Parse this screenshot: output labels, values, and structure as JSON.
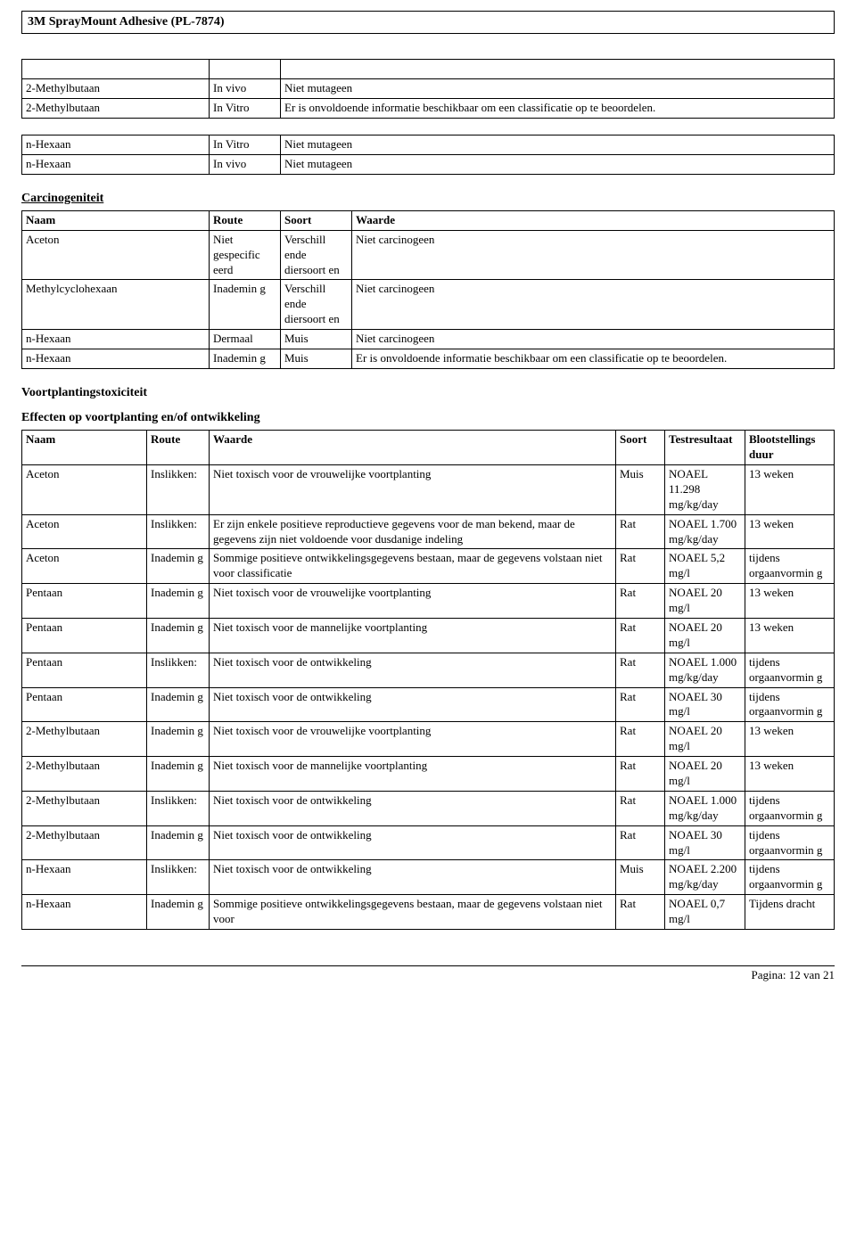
{
  "header": {
    "title": "3M SprayMount Adhesive (PL-7874)"
  },
  "table1": {
    "rows": [
      [
        "2-Methylbutaan",
        "In vivo",
        "Niet mutageen"
      ],
      [
        "2-Methylbutaan",
        "In Vitro",
        "Er is onvoldoende informatie beschikbaar om een classificatie op te beoordelen."
      ]
    ],
    "col_widths": [
      "210px",
      "80px",
      "auto"
    ]
  },
  "table2": {
    "rows": [
      [
        "n-Hexaan",
        "In Vitro",
        "Niet mutageen"
      ],
      [
        "n-Hexaan",
        "In vivo",
        "Niet mutageen"
      ]
    ],
    "col_widths": [
      "210px",
      "80px",
      "auto"
    ]
  },
  "carcino": {
    "title": "Carcinogeniteit",
    "headers": [
      "Naam",
      "Route",
      "Soort",
      "Waarde"
    ],
    "col_widths": [
      "210px",
      "80px",
      "80px",
      "auto"
    ],
    "rows": [
      [
        "Aceton",
        "Niet gespecific eerd",
        "Verschill ende diersoort en",
        "Niet carcinogeen"
      ],
      [
        "Methylcyclohexaan",
        "Inademin g",
        "Verschill ende diersoort en",
        "Niet carcinogeen"
      ],
      [
        "n-Hexaan",
        "Dermaal",
        "Muis",
        "Niet carcinogeen"
      ],
      [
        "n-Hexaan",
        "Inademin g",
        "Muis",
        "Er is onvoldoende informatie beschikbaar om een classificatie op te beoordelen."
      ]
    ]
  },
  "repro": {
    "title1": "Voortplantingstoxiciteit",
    "title2": "Effecten op voortplanting en/of ontwikkeling",
    "headers": [
      "Naam",
      "Route",
      "Waarde",
      "Soort",
      "Testresultaat",
      "Blootstellings duur"
    ],
    "col_widths": [
      "140px",
      "70px",
      "auto",
      "55px",
      "90px",
      "100px"
    ],
    "rows": [
      [
        "Aceton",
        "Inslikken:",
        "Niet toxisch voor de vrouwelijke voortplanting",
        "Muis",
        "NOAEL 11.298 mg/kg/day",
        "13 weken"
      ],
      [
        "Aceton",
        "Inslikken:",
        "Er zijn enkele positieve reproductieve gegevens voor de man bekend, maar de gegevens zijn niet voldoende voor dusdanige indeling",
        "Rat",
        "NOAEL 1.700 mg/kg/day",
        "13 weken"
      ],
      [
        "Aceton",
        "Inademin g",
        "Sommige positieve ontwikkelingsgegevens bestaan, maar de gegevens volstaan niet voor classificatie",
        "Rat",
        "NOAEL 5,2 mg/l",
        "tijdens orgaanvormin g"
      ],
      [
        "Pentaan",
        "Inademin g",
        "Niet toxisch voor de vrouwelijke voortplanting",
        "Rat",
        "NOAEL 20 mg/l",
        "13 weken"
      ],
      [
        "Pentaan",
        "Inademin g",
        "Niet toxisch voor de mannelijke voortplanting",
        "Rat",
        "NOAEL 20 mg/l",
        "13 weken"
      ],
      [
        "Pentaan",
        "Inslikken:",
        "Niet toxisch voor de ontwikkeling",
        "Rat",
        "NOAEL 1.000 mg/kg/day",
        "tijdens orgaanvormin g"
      ],
      [
        "Pentaan",
        "Inademin g",
        "Niet toxisch voor de ontwikkeling",
        "Rat",
        "NOAEL 30 mg/l",
        "tijdens orgaanvormin g"
      ],
      [
        "2-Methylbutaan",
        "Inademin g",
        "Niet toxisch voor de vrouwelijke voortplanting",
        "Rat",
        "NOAEL 20 mg/l",
        "13 weken"
      ],
      [
        "2-Methylbutaan",
        "Inademin g",
        "Niet toxisch voor de mannelijke voortplanting",
        "Rat",
        "NOAEL 20 mg/l",
        "13 weken"
      ],
      [
        "2-Methylbutaan",
        "Inslikken:",
        "Niet toxisch voor de ontwikkeling",
        "Rat",
        "NOAEL 1.000 mg/kg/day",
        "tijdens orgaanvormin g"
      ],
      [
        "2-Methylbutaan",
        "Inademin g",
        "Niet toxisch voor de ontwikkeling",
        "Rat",
        "NOAEL 30 mg/l",
        "tijdens orgaanvormin g"
      ],
      [
        "n-Hexaan",
        "Inslikken:",
        "Niet toxisch voor de ontwikkeling",
        "Muis",
        "NOAEL 2.200 mg/kg/day",
        "tijdens orgaanvormin g"
      ],
      [
        "n-Hexaan",
        "Inademin g",
        "Sommige positieve ontwikkelingsgegevens bestaan, maar de gegevens volstaan niet voor",
        "Rat",
        "NOAEL 0,7 mg/l",
        "Tijdens dracht"
      ]
    ]
  },
  "footer": {
    "text": "Pagina: 12 van 21"
  }
}
